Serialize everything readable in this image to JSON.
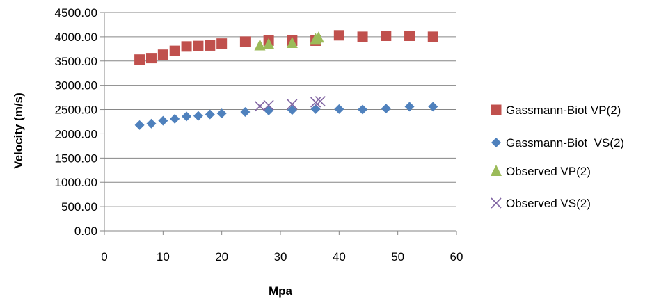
{
  "chart_data": {
    "type": "scatter",
    "xlabel": "Mpa",
    "ylabel": "Velocity (m/s)",
    "xlim": [
      0,
      60
    ],
    "ylim": [
      0,
      4500
    ],
    "x_ticks": [
      "0",
      "10",
      "20",
      "30",
      "40",
      "50",
      "60"
    ],
    "y_ticks": [
      "0.00",
      "500.00",
      "1000.00",
      "1500.00",
      "2000.00",
      "2500.00",
      "3000.00",
      "3500.00",
      "4000.00",
      "4500.00"
    ],
    "grid": "horizontal",
    "legend_position": "right",
    "series": [
      {
        "name": "Gassmann-Biot VP(2)",
        "marker": "square",
        "color": "#C0504D",
        "points": [
          [
            6,
            3530
          ],
          [
            8,
            3560
          ],
          [
            10,
            3630
          ],
          [
            12,
            3710
          ],
          [
            14,
            3800
          ],
          [
            16,
            3810
          ],
          [
            18,
            3820
          ],
          [
            20,
            3860
          ],
          [
            24,
            3900
          ],
          [
            28,
            3920
          ],
          [
            32,
            3920
          ],
          [
            36,
            3920
          ],
          [
            40,
            4030
          ],
          [
            44,
            4000
          ],
          [
            48,
            4020
          ],
          [
            52,
            4020
          ],
          [
            56,
            4000
          ]
        ]
      },
      {
        "name": "Gassmann-Biot  VS(2)",
        "marker": "diamond",
        "color": "#4F81BD",
        "points": [
          [
            6,
            2180
          ],
          [
            8,
            2210
          ],
          [
            10,
            2270
          ],
          [
            12,
            2310
          ],
          [
            14,
            2360
          ],
          [
            16,
            2370
          ],
          [
            18,
            2400
          ],
          [
            20,
            2420
          ],
          [
            24,
            2450
          ],
          [
            28,
            2480
          ],
          [
            32,
            2490
          ],
          [
            36,
            2510
          ],
          [
            40,
            2510
          ],
          [
            44,
            2500
          ],
          [
            48,
            2520
          ],
          [
            52,
            2560
          ],
          [
            56,
            2560
          ]
        ]
      },
      {
        "name": "Observed VP(2)",
        "marker": "triangle",
        "color": "#9BBB59",
        "points": [
          [
            26.5,
            3820
          ],
          [
            28,
            3850
          ],
          [
            32,
            3870
          ],
          [
            36,
            3950
          ],
          [
            36.5,
            3980
          ]
        ]
      },
      {
        "name": "Observed VS(2)",
        "marker": "x",
        "color": "#8064A2",
        "points": [
          [
            26.5,
            2570
          ],
          [
            28,
            2590
          ],
          [
            32,
            2610
          ],
          [
            36,
            2650
          ],
          [
            36.8,
            2670
          ]
        ]
      }
    ]
  }
}
